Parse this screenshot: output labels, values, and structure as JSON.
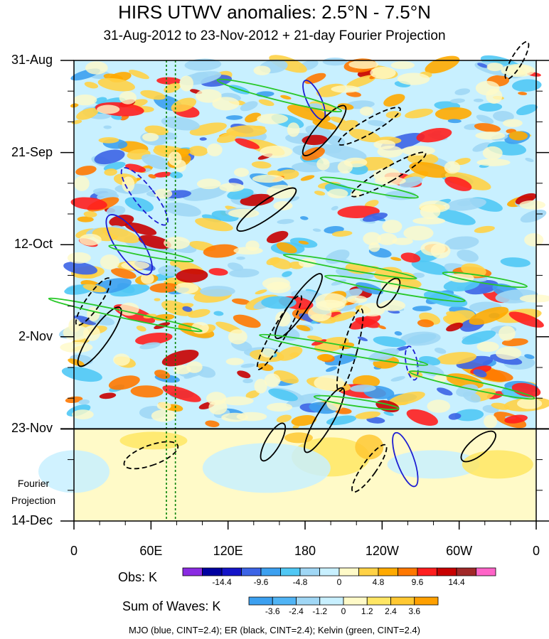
{
  "chart_data": {
    "type": "heatmap",
    "title": "HIRS UTWV anomalies: 2.5°N - 7.5°N",
    "subtitle": "31-Aug-2012 to 23-Nov-2012 + 21-day Fourier Projection",
    "yticks": [
      {
        "label": "31-Aug",
        "day": 0
      },
      {
        "label": "21-Sep",
        "day": 21
      },
      {
        "label": "12-Oct",
        "day": 42
      },
      {
        "label": "2-Nov",
        "day": 63
      },
      {
        "label": "23-Nov",
        "day": 84
      },
      {
        "label": "14-Dec",
        "day": 105
      }
    ],
    "y_range_days": [
      0,
      105
    ],
    "projection_start_day": 84,
    "projection_label": "Fourier Projection",
    "xticks": [
      {
        "label": "0",
        "lon": 0
      },
      {
        "label": "60E",
        "lon": 60
      },
      {
        "label": "120E",
        "lon": 120
      },
      {
        "label": "180",
        "lon": 180
      },
      {
        "label": "120W",
        "lon": 240
      },
      {
        "label": "60W",
        "lon": 300
      },
      {
        "label": "0",
        "lon": 360
      }
    ],
    "x_range_lon": [
      0,
      360
    ],
    "reference_lines_lon": [
      72,
      79
    ],
    "obs_colorbar": {
      "title": "Obs: K",
      "tick_labels": [
        "-14.4",
        "-9.6",
        "-4.8",
        "0",
        "4.8",
        "9.6",
        "14.4"
      ],
      "colors": [
        "#8a2be2",
        "#0000a0",
        "#1414c8",
        "#3c64e6",
        "#3ca0f0",
        "#50c8f5",
        "#a0d7f5",
        "#c8f0ff",
        "#fffac8",
        "#ffd246",
        "#ffaa00",
        "#ff7800",
        "#ff1e1e",
        "#c80000",
        "#a02828",
        "#ff64c8"
      ]
    },
    "wave_colorbar": {
      "title": "Sum of Waves: K",
      "tick_labels": [
        "-3.6",
        "-2.4",
        "-1.2",
        "0",
        "1.2",
        "2.4",
        "3.6"
      ],
      "colors": [
        "#3ca0f0",
        "#50b4f5",
        "#a0d7f5",
        "#c8f0ff",
        "#fffac8",
        "#ffe664",
        "#ffc832",
        "#ffa000"
      ]
    },
    "contour_legend": "MJO (blue, CINT=2.4); ER (black, CINT=2.4); Kelvin (green, CINT=2.4)",
    "series_colors": {
      "mjo": "#1e1ed2",
      "er": "#000000",
      "kelvin": "#28c828"
    }
  }
}
